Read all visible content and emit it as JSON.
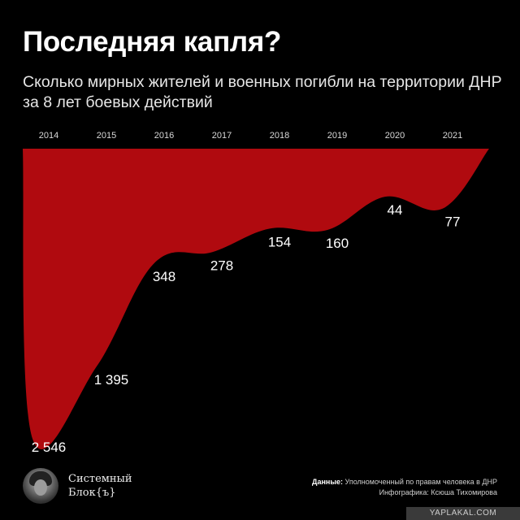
{
  "title": "Последняя капля?",
  "subtitle": "Сколько мирных жителей и военных погибли на территории ДНР за 8 лет боевых действий",
  "chart_data": {
    "type": "area",
    "title": "Последняя капля?",
    "subtitle": "Сколько мирных жителей и военных погибли на территории ДНР за 8 лет боевых действий",
    "categories": [
      "2014",
      "2015",
      "2016",
      "2017",
      "2018",
      "2019",
      "2020",
      "2021"
    ],
    "values": [
      2546,
      1395,
      348,
      278,
      154,
      160,
      44,
      77
    ],
    "value_labels": [
      "2 546",
      "1 395",
      "348",
      "278",
      "154",
      "160",
      "44",
      "77"
    ],
    "axis_position": "top",
    "direction": "downward",
    "fill_color": "#b00a0f",
    "grid": false
  },
  "brand": {
    "line1": "Системный",
    "line2": "Блок{ъ}"
  },
  "credits": {
    "data_label": "Данные:",
    "data_source": "Уполномоченный по правам человека в ДНР",
    "infographic": "Инфографика: Ксюша Тихомирова"
  },
  "watermark": "YAPLAKAL.COM"
}
